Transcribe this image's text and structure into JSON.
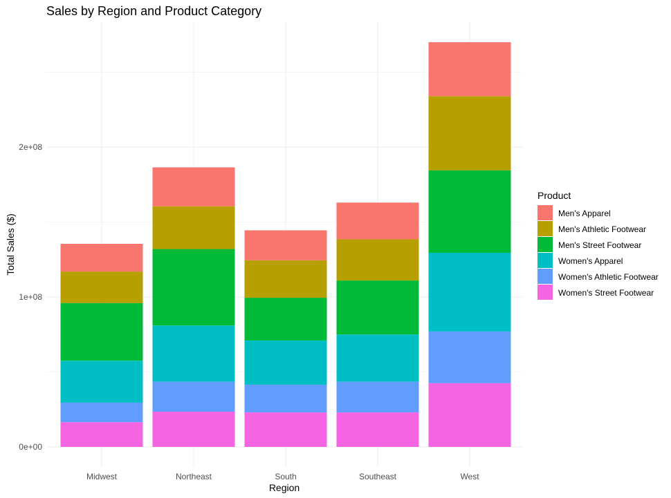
{
  "chart_data": {
    "type": "bar",
    "stacked": true,
    "title": "Sales by Region and Product Category",
    "xlabel": "Region",
    "ylabel": "Total Sales ($)",
    "categories": [
      "Midwest",
      "Northeast",
      "South",
      "Southeast",
      "West"
    ],
    "ylim": [
      0,
      270000000
    ],
    "yticks": [
      0,
      100000000,
      200000000
    ],
    "ytick_labels": [
      "0e+00",
      "1e+08",
      "2e+08"
    ],
    "grid": true,
    "legend": {
      "title": "Product",
      "position": "right"
    },
    "series": [
      {
        "name": "Men's Apparel",
        "color": "#F8766D",
        "values": [
          18500000,
          26000000,
          20000000,
          24500000,
          36000000
        ]
      },
      {
        "name": "Men's Athletic Footwear",
        "color": "#B79F00",
        "values": [
          21000000,
          28500000,
          25000000,
          27500000,
          49500000
        ]
      },
      {
        "name": "Men's Street Footwear",
        "color": "#00BA38",
        "values": [
          38500000,
          51000000,
          28500000,
          36000000,
          55000000
        ]
      },
      {
        "name": "Women's Apparel",
        "color": "#00BFC4",
        "values": [
          28000000,
          37500000,
          29500000,
          31500000,
          52500000
        ]
      },
      {
        "name": "Women's Athletic Footwear",
        "color": "#619CFF",
        "values": [
          13000000,
          20000000,
          18500000,
          20500000,
          34500000
        ]
      },
      {
        "name": "Women's Street Footwear",
        "color": "#F564E3",
        "values": [
          16500000,
          23500000,
          23000000,
          23000000,
          42500000
        ]
      }
    ]
  }
}
